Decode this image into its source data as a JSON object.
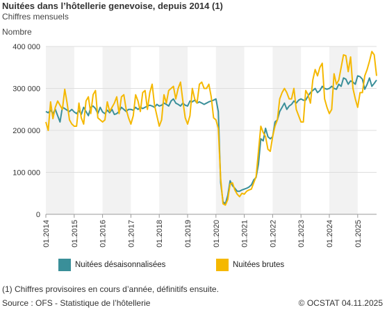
{
  "header": {
    "title": "Nuitées dans l’hôtellerie genevoise, depuis 2014 (1)",
    "subtitle": "Chiffres mensuels",
    "unit_label": "Nombre"
  },
  "footer": {
    "note": "(1) Chiffres provisoires en cours d’année, définitifs ensuite.",
    "source": "Source : OFS - Statistique de l’hôtellerie",
    "copyright": "© OCSTAT 04.11.2025"
  },
  "colors": {
    "seasonally_adjusted": "#3a8f99",
    "raw": "#f5b800",
    "band": "#f2f2f2",
    "gridline": "#dddddd"
  },
  "chart_data": {
    "type": "line",
    "title": "Nuitées dans l’hôtellerie genevoise, depuis 2014 (1)",
    "subtitle": "Chiffres mensuels",
    "ylabel": "Nombre",
    "ylim": [
      0,
      400000
    ],
    "yticks": [
      0,
      100000,
      200000,
      300000,
      400000
    ],
    "ytick_labels": [
      "0",
      "100 000",
      "200 000",
      "300 000",
      "400 000"
    ],
    "xlim": [
      "2014-01",
      "2025-09"
    ],
    "xtick_labels": [
      "01.2014",
      "01.2015",
      "01.2016",
      "01.2017",
      "01.2018",
      "01.2019",
      "01.2020",
      "01.2021",
      "01.2022",
      "01.2023",
      "01.2024",
      "01.2025"
    ],
    "grid": true,
    "alternating_year_bands": true,
    "legend": "bottom",
    "series": [
      {
        "name": "Nuitées désaisonnalisées",
        "color": "#3a8f99",
        "values": [
          [
            245000,
            242000,
            248000,
            240000,
            250000,
            235000,
            220000,
            255000,
            252000,
            248000,
            245000,
            250000
          ],
          [
            244000,
            240000,
            247000,
            238000,
            255000,
            245000,
            235000,
            255000,
            258000,
            252000,
            240000,
            255000
          ],
          [
            244000,
            240000,
            248000,
            242000,
            250000,
            238000,
            240000,
            245000,
            255000,
            250000,
            245000,
            250000
          ],
          [
            250000,
            248000,
            255000,
            250000,
            255000,
            252000,
            255000,
            258000,
            260000,
            258000,
            255000,
            262000
          ],
          [
            258000,
            260000,
            265000,
            262000,
            258000,
            270000,
            275000,
            265000,
            262000,
            258000,
            265000,
            260000
          ],
          [
            258000,
            270000,
            268000,
            272000,
            265000,
            268000,
            265000,
            262000,
            265000,
            268000,
            270000,
            272000
          ],
          [
            275000,
            245000,
            75000,
            30000,
            25000,
            45000,
            80000,
            68000,
            62000,
            55000,
            55000,
            58000
          ],
          [
            60000,
            62000,
            65000,
            70000,
            82000,
            88000,
            120000,
            180000,
            175000,
            205000,
            185000,
            180000
          ],
          [
            185000,
            220000,
            225000,
            245000,
            255000,
            265000,
            250000,
            258000,
            262000,
            270000,
            265000,
            272000
          ],
          [
            275000,
            272000,
            272000,
            282000,
            290000,
            295000,
            300000,
            290000,
            295000,
            305000,
            300000,
            298000
          ],
          [
            300000,
            305000,
            300000,
            298000,
            310000,
            305000,
            325000,
            322000,
            310000,
            318000,
            315000,
            310000
          ],
          [
            330000,
            328000,
            322000,
            298000,
            310000,
            325000,
            305000,
            312000,
            320000
          ]
        ]
      },
      {
        "name": "Nuitées brutes",
        "color": "#f5b800",
        "values": [
          [
            220000,
            200000,
            268000,
            228000,
            255000,
            270000,
            260000,
            250000,
            298000,
            265000,
            225000,
            215000
          ],
          [
            210000,
            210000,
            265000,
            230000,
            215000,
            270000,
            280000,
            240000,
            285000,
            295000,
            230000,
            225000
          ],
          [
            220000,
            225000,
            268000,
            245000,
            255000,
            265000,
            280000,
            240000,
            280000,
            285000,
            250000,
            230000
          ],
          [
            215000,
            235000,
            285000,
            270000,
            245000,
            290000,
            295000,
            250000,
            290000,
            310000,
            260000,
            235000
          ],
          [
            210000,
            225000,
            285000,
            265000,
            295000,
            300000,
            305000,
            275000,
            300000,
            315000,
            270000,
            230000
          ],
          [
            215000,
            235000,
            300000,
            275000,
            265000,
            310000,
            315000,
            300000,
            300000,
            310000,
            280000,
            230000
          ],
          [
            225000,
            205000,
            85000,
            25000,
            22000,
            35000,
            72000,
            75000,
            58000,
            48000,
            42000,
            50000
          ],
          [
            48000,
            55000,
            58000,
            60000,
            75000,
            90000,
            150000,
            210000,
            195000,
            185000,
            155000,
            150000
          ],
          [
            185000,
            210000,
            225000,
            275000,
            290000,
            300000,
            290000,
            275000,
            275000,
            300000,
            250000,
            235000
          ],
          [
            220000,
            220000,
            295000,
            285000,
            265000,
            320000,
            345000,
            330000,
            350000,
            360000,
            275000,
            255000
          ],
          [
            240000,
            250000,
            335000,
            310000,
            320000,
            350000,
            380000,
            378000,
            340000,
            375000,
            300000,
            275000
          ],
          [
            255000,
            290000,
            290000,
            330000,
            345000,
            365000,
            388000,
            380000,
            330000
          ]
        ]
      }
    ]
  }
}
